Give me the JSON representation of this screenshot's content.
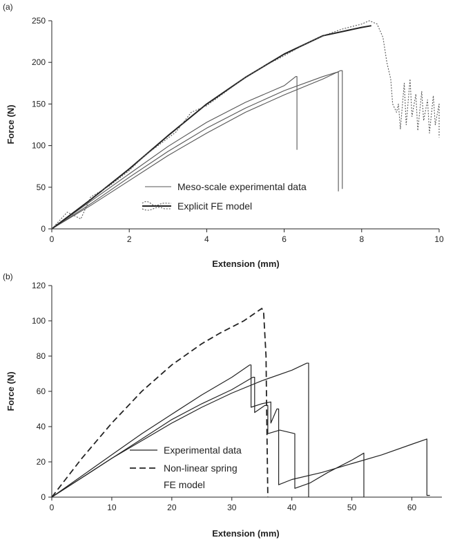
{
  "figure": {
    "panel_a_label": "(a)",
    "panel_b_label": "(b)"
  },
  "chart_data": [
    {
      "type": "line",
      "panel": "(a)",
      "xlabel": "Extension (mm)",
      "ylabel": "Force (N)",
      "xlim": [
        0,
        10
      ],
      "ylim": [
        0,
        250
      ],
      "xticks": [
        0,
        2,
        4,
        6,
        8,
        10
      ],
      "yticks": [
        0,
        50,
        100,
        150,
        200,
        250
      ],
      "grid": false,
      "legend": [
        {
          "label": "Meso-scale experimental data"
        },
        {
          "label": "Explicit FE model"
        }
      ],
      "series": [
        {
          "name": "Meso-scale experimental data",
          "style": "thin-solid",
          "color": "#555555",
          "points": [
            [
              0,
              0
            ],
            [
              1,
              33
            ],
            [
              2,
              66
            ],
            [
              3,
              99
            ],
            [
              4,
              128
            ],
            [
              5,
              152
            ],
            [
              6,
              172
            ],
            [
              6.3,
              183
            ],
            [
              6.33,
              183
            ],
            [
              6.33,
              95
            ]
          ]
        },
        {
          "name": "Meso-scale experimental data",
          "style": "thin-solid",
          "color": "#555555",
          "points": [
            [
              0,
              0
            ],
            [
              1,
              30
            ],
            [
              2,
              62
            ],
            [
              3,
              93
            ],
            [
              4,
              121
            ],
            [
              5,
              145
            ],
            [
              6,
              166
            ],
            [
              7,
              183
            ],
            [
              7.35,
              188
            ],
            [
              7.4,
              188
            ],
            [
              7.4,
              45
            ]
          ]
        },
        {
          "name": "Meso-scale experimental data",
          "style": "thin-solid",
          "color": "#555555",
          "points": [
            [
              0,
              0
            ],
            [
              1,
              28
            ],
            [
              2,
              58
            ],
            [
              3,
              88
            ],
            [
              4,
              115
            ],
            [
              5,
              140
            ],
            [
              6,
              161
            ],
            [
              7,
              180
            ],
            [
              7.45,
              190
            ],
            [
              7.5,
              190
            ],
            [
              7.5,
              48
            ]
          ]
        },
        {
          "name": "Explicit FE model",
          "style": "thick-solid",
          "color": "#222222",
          "points": [
            [
              0,
              0
            ],
            [
              1,
              35
            ],
            [
              2,
              72
            ],
            [
              3,
              112
            ],
            [
              4,
              150
            ],
            [
              5,
              182
            ],
            [
              6,
              210
            ],
            [
              7,
              232
            ],
            [
              8,
              242
            ],
            [
              8.25,
              244
            ]
          ]
        },
        {
          "name": "",
          "style": "dotted",
          "color": "#555555",
          "points": [
            [
              0,
              0
            ],
            [
              0.4,
              20
            ],
            [
              0.75,
              12
            ],
            [
              1,
              38
            ],
            [
              1.5,
              52
            ],
            [
              2,
              70
            ],
            [
              2.4,
              88
            ],
            [
              2.8,
              102
            ],
            [
              3.2,
              116
            ],
            [
              3.6,
              140
            ],
            [
              4,
              148
            ],
            [
              4.5,
              165
            ],
            [
              5,
              182
            ],
            [
              5.5,
              196
            ],
            [
              6,
              208
            ],
            [
              6.5,
              221
            ],
            [
              7,
              232
            ],
            [
              7.5,
              240
            ],
            [
              8,
              246
            ],
            [
              8.2,
              250
            ],
            [
              8.4,
              246
            ],
            [
              8.55,
              230
            ],
            [
              8.65,
              200
            ],
            [
              8.75,
              180
            ],
            [
              8.8,
              150
            ],
            [
              8.9,
              140
            ],
            [
              8.95,
              150
            ],
            [
              9,
              120
            ],
            [
              9.1,
              175
            ],
            [
              9.15,
              125
            ],
            [
              9.25,
              180
            ],
            [
              9.3,
              135
            ],
            [
              9.4,
              162
            ],
            [
              9.45,
              118
            ],
            [
              9.55,
              165
            ],
            [
              9.6,
              130
            ],
            [
              9.7,
              155
            ],
            [
              9.75,
              115
            ],
            [
              9.85,
              160
            ],
            [
              9.9,
              125
            ],
            [
              10,
              150
            ],
            [
              10,
              110
            ]
          ]
        }
      ]
    },
    {
      "type": "line",
      "panel": "(b)",
      "xlabel": "Extension (mm)",
      "ylabel": "Force (N)",
      "xlim": [
        0,
        65
      ],
      "ylim": [
        0,
        120
      ],
      "xticks": [
        0,
        10,
        20,
        30,
        40,
        50,
        60
      ],
      "yticks": [
        0,
        20,
        40,
        60,
        80,
        100,
        120
      ],
      "grid": false,
      "legend": [
        {
          "label": "Experimental data"
        },
        {
          "label": "Non-linear spring"
        },
        {
          "label": "FE model"
        }
      ],
      "series": [
        {
          "name": "Experimental data",
          "style": "solid-jagged",
          "color": "#222222",
          "points": [
            [
              0,
              0
            ],
            [
              5,
              12
            ],
            [
              10,
              24
            ],
            [
              15,
              36
            ],
            [
              20,
              47
            ],
            [
              25,
              58
            ],
            [
              30,
              68
            ],
            [
              33,
              75
            ],
            [
              33.2,
              75
            ],
            [
              33.2,
              51
            ],
            [
              35,
              53
            ],
            [
              36.5,
              54
            ],
            [
              36.5,
              42
            ],
            [
              37.5,
              50
            ],
            [
              37.8,
              50
            ],
            [
              37.8,
              7
            ],
            [
              40,
              10
            ],
            [
              45,
              14
            ],
            [
              50,
              19
            ],
            [
              55,
              24
            ],
            [
              60,
              30
            ],
            [
              62.5,
              33
            ],
            [
              62.5,
              1
            ],
            [
              63,
              1
            ]
          ]
        },
        {
          "name": "Experimental data",
          "style": "solid-jagged",
          "color": "#222222",
          "points": [
            [
              0,
              0
            ],
            [
              5,
              11
            ],
            [
              10,
              22
            ],
            [
              15,
              33
            ],
            [
              20,
              44
            ],
            [
              25,
              53
            ],
            [
              30,
              61
            ],
            [
              33.5,
              68
            ],
            [
              33.8,
              68
            ],
            [
              33.8,
              48
            ],
            [
              35.5,
              52
            ],
            [
              36,
              52
            ],
            [
              36,
              36
            ],
            [
              38,
              38
            ],
            [
              40.5,
              36
            ],
            [
              40.5,
              5
            ],
            [
              43,
              8
            ],
            [
              46,
              14
            ],
            [
              50,
              21
            ],
            [
              52,
              25
            ],
            [
              52,
              0
            ]
          ]
        },
        {
          "name": "Experimental data",
          "style": "solid-jagged",
          "color": "#222222",
          "points": [
            [
              0,
              0
            ],
            [
              5,
              11
            ],
            [
              10,
              22
            ],
            [
              15,
              32
            ],
            [
              20,
              42
            ],
            [
              25,
              51
            ],
            [
              30,
              59
            ],
            [
              35,
              66
            ],
            [
              40,
              72
            ],
            [
              42.5,
              76
            ],
            [
              42.8,
              76
            ],
            [
              42.8,
              0
            ]
          ]
        },
        {
          "name": "Non-linear spring FE model",
          "style": "dashed",
          "color": "#222222",
          "points": [
            [
              0,
              0
            ],
            [
              5,
              22
            ],
            [
              10,
              42
            ],
            [
              15,
              60
            ],
            [
              20,
              75
            ],
            [
              25,
              87
            ],
            [
              28,
              93
            ],
            [
              32,
              100
            ],
            [
              35,
              107
            ],
            [
              35.3,
              105
            ],
            [
              35.7,
              80
            ],
            [
              35.8,
              50
            ],
            [
              36,
              0
            ]
          ]
        }
      ]
    }
  ]
}
